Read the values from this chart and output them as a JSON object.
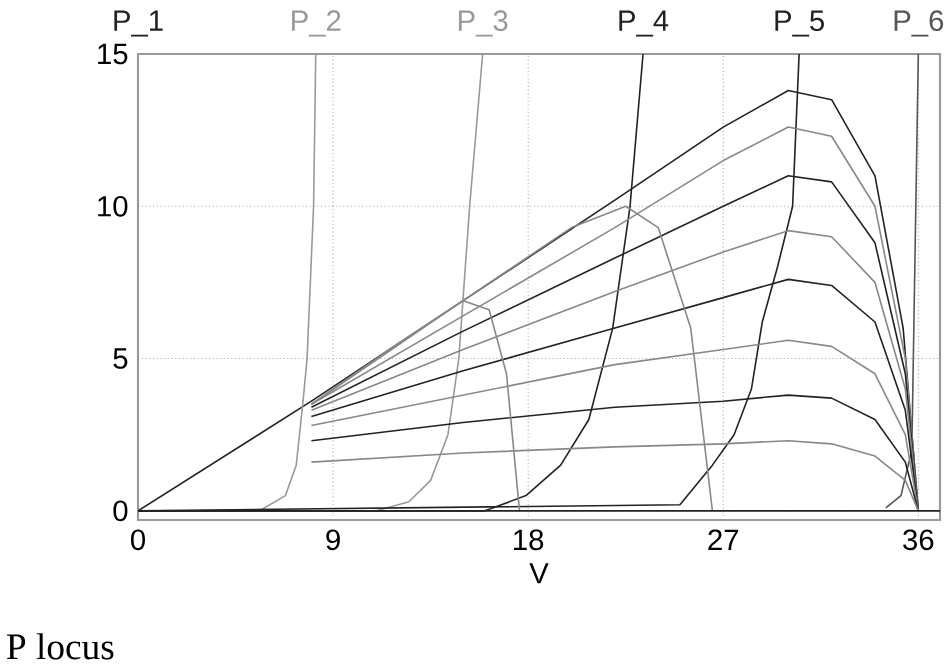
{
  "chart_data": {
    "type": "line",
    "xlabel": "V",
    "xlim": [
      0,
      37
    ],
    "ylim": [
      -0.3,
      15
    ],
    "xticks": [
      0,
      9,
      18,
      27,
      36
    ],
    "yticks": [
      0,
      5,
      10,
      15
    ],
    "grid": true,
    "annotations": [
      "P locus"
    ],
    "series": [
      {
        "name": "P_1",
        "color": "#222222",
        "x": [
          0,
          8,
          15,
          22,
          27,
          30,
          32,
          34,
          35.3,
          36
        ],
        "values": [
          0,
          3.6,
          6.9,
          10.2,
          12.6,
          13.8,
          13.5,
          11,
          6,
          0
        ]
      },
      {
        "name": "P_2",
        "color": "#999999",
        "x": [
          0,
          5.6,
          6.8,
          7.3,
          7.6,
          7.8,
          8.1,
          8.2
        ],
        "values": [
          0,
          0,
          0.5,
          1.5,
          3.5,
          5,
          10,
          15
        ]
      },
      {
        "name": "P_3",
        "color": "#999999",
        "x": [
          0,
          11,
          12.5,
          13.5,
          14.3,
          14.8,
          15.3,
          15.9
        ],
        "values": [
          0,
          0,
          0.3,
          1,
          2.5,
          5,
          10,
          15
        ]
      },
      {
        "name": "P_4",
        "color": "#222222",
        "x": [
          0,
          16,
          17.9,
          19.5,
          20.8,
          21.9,
          22.7,
          23.3
        ],
        "values": [
          0,
          0,
          0.5,
          1.5,
          3,
          6,
          10,
          15
        ]
      },
      {
        "name": "P_5",
        "color": "#222222",
        "x": [
          0,
          25,
          26.5,
          27.5,
          28.3,
          28.8,
          29.5,
          30.2,
          30.5
        ],
        "values": [
          0,
          0.2,
          1.5,
          2.5,
          4,
          6.2,
          8,
          10,
          15
        ]
      },
      {
        "name": "P_6",
        "color": "#555555",
        "x": [
          34.5,
          35.2,
          35.7,
          36
        ],
        "values": [
          0.1,
          0.5,
          2,
          15
        ]
      },
      {
        "color": "#888888",
        "x": [
          8,
          15,
          22,
          27,
          30,
          32,
          34,
          35.4,
          36
        ],
        "values": [
          3.5,
          6.4,
          9.3,
          11.5,
          12.6,
          12.3,
          10,
          5,
          0
        ]
      },
      {
        "color": "#222222",
        "x": [
          8,
          15,
          22,
          27,
          30,
          32,
          34,
          35.4,
          36
        ],
        "values": [
          3.4,
          5.9,
          8.3,
          10,
          11,
          10.8,
          8.8,
          4.5,
          0
        ]
      },
      {
        "color": "#888888",
        "x": [
          8,
          15,
          22,
          27,
          30,
          32,
          34,
          35.4,
          36
        ],
        "values": [
          3.3,
          5.3,
          7.2,
          8.5,
          9.2,
          9,
          7.5,
          4,
          0
        ]
      },
      {
        "color": "#222222",
        "x": [
          8,
          15,
          22,
          27,
          30,
          32,
          34,
          35.4,
          36
        ],
        "values": [
          3.1,
          4.6,
          6,
          7,
          7.6,
          7.4,
          6.2,
          3.3,
          0
        ]
      },
      {
        "color": "#888888",
        "x": [
          8,
          15,
          22,
          27,
          30,
          32,
          34,
          35.4,
          36
        ],
        "values": [
          2.8,
          3.8,
          4.8,
          5.3,
          5.6,
          5.4,
          4.5,
          2.5,
          0
        ]
      },
      {
        "color": "#222222",
        "x": [
          8,
          15,
          22,
          27,
          30,
          32,
          34,
          35.4,
          36
        ],
        "values": [
          2.3,
          2.9,
          3.4,
          3.6,
          3.8,
          3.7,
          3,
          1.6,
          0
        ]
      },
      {
        "color": "#888888",
        "x": [
          8,
          15,
          22,
          27,
          30,
          32,
          34,
          35.4,
          36
        ],
        "values": [
          1.6,
          1.9,
          2.1,
          2.2,
          2.3,
          2.2,
          1.8,
          1,
          0
        ]
      },
      {
        "color": "#888888",
        "x": [
          8,
          12,
          15,
          16.2,
          17,
          17.6
        ],
        "values": [
          3.5,
          5.5,
          6.9,
          6.6,
          4.5,
          0
        ]
      },
      {
        "color": "#888888",
        "x": [
          8,
          15,
          20,
          22.5,
          24,
          25.5,
          26.5
        ],
        "values": [
          3.5,
          6.9,
          9.3,
          10,
          9.3,
          6,
          0
        ]
      },
      {
        "color": "#222222",
        "x": [
          0,
          37
        ],
        "values": [
          0,
          0
        ]
      }
    ]
  }
}
